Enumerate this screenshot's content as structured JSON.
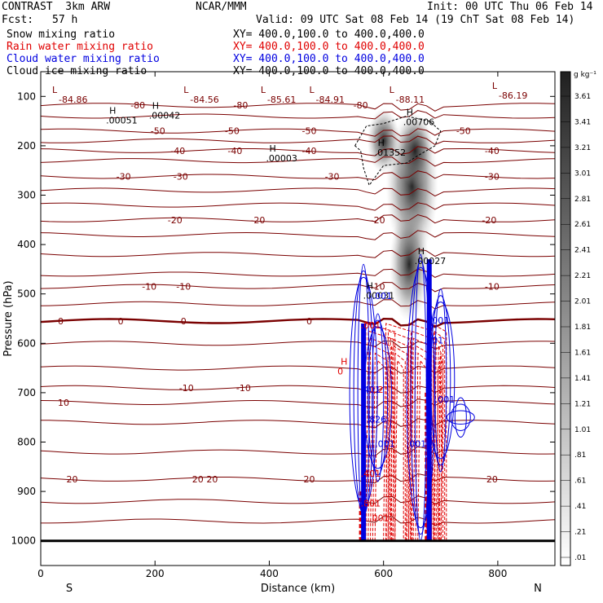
{
  "header": {
    "title_left": "CONTRAST  3km ARW",
    "title_center": "NCAR/MMM",
    "init": "Init: 00 UTC Thu 06 Feb 14",
    "fcst_label": "Fcst:",
    "fcst_value": "57 h",
    "valid": "Valid: 09 UTC Sat 08 Feb 14 (19 ChT Sat 08 Feb 14)"
  },
  "fields": [
    {
      "name": "Snow mixing ratio",
      "xy": "XY= 400.0,100.0 to 400.0,400.0",
      "color": "#000000"
    },
    {
      "name": "Rain water mixing ratio",
      "xy": "XY= 400.0,100.0 to 400.0,400.0",
      "color": "#e00000"
    },
    {
      "name": "Cloud water mixing ratio",
      "xy": "XY= 400.0,100.0 to 400.0,400.0",
      "color": "#0000e0"
    },
    {
      "name": "Cloud ice mixing ratio",
      "xy": "XY= 400.0,100.0 to 400.0,400.0",
      "color": "#000000"
    }
  ],
  "chart_data": {
    "type": "cross-section contour",
    "xlabel": "Distance (km)",
    "ylabel": "Pressure (hPa)",
    "xlim": [
      0,
      900
    ],
    "ylim": [
      1050,
      50
    ],
    "x_ticks": [
      0,
      200,
      400,
      600,
      800
    ],
    "y_ticks": [
      100,
      200,
      300,
      400,
      500,
      600,
      700,
      800,
      900,
      1000
    ],
    "end_labels": {
      "left": "S",
      "right": "N"
    },
    "colorbar": {
      "unit": "g kg⁻¹",
      "levels": [
        "3.61",
        "3.41",
        "3.21",
        "3.01",
        "2.81",
        "2.61",
        "2.41",
        "2.21",
        "2.01",
        "1.81",
        "1.61",
        "1.41",
        "1.21",
        "1.01",
        ".81",
        ".61",
        ".41",
        ".21",
        ".01"
      ]
    },
    "temperature_contours": [
      {
        "label": "-80",
        "p": 118,
        "labels_at": [
          170,
          350,
          560
        ]
      },
      {
        "label": "-50",
        "p": 170,
        "labels_at": [
          205,
          335,
          470,
          740
        ]
      },
      {
        "label": "-40",
        "p": 210,
        "labels_at": [
          240,
          340,
          470,
          790
        ]
      },
      {
        "label": "-30",
        "p": 262,
        "labels_at": [
          145,
          245,
          510,
          790
        ]
      },
      {
        "label": "-20",
        "p": 350,
        "labels_at": [
          235,
          380,
          590,
          785
        ]
      },
      {
        "label": "-10",
        "p": 485,
        "labels_at": [
          190,
          250,
          590,
          790
        ]
      },
      {
        "label": "0",
        "p": 555,
        "labels_at": [
          35,
          140,
          250,
          470
        ]
      },
      {
        "label": "-10",
        "p": 690,
        "labels_at": [
          255,
          355
        ]
      },
      {
        "label": "10",
        "p": 720,
        "labels_at": [
          40
        ]
      },
      {
        "label": "20",
        "p": 875,
        "labels_at": [
          55,
          275,
          300,
          470,
          790
        ]
      }
    ],
    "min_labels": [
      {
        "mark": "L",
        "value": "-84.86",
        "x": 20,
        "p": 93
      },
      {
        "mark": "L",
        "value": "-84.56",
        "x": 250,
        "p": 93
      },
      {
        "mark": "L",
        "value": "-85.61",
        "x": 385,
        "p": 93
      },
      {
        "mark": "L",
        "value": "-84.91",
        "x": 470,
        "p": 93
      },
      {
        "mark": "L",
        "value": "-88.11",
        "x": 610,
        "p": 93
      },
      {
        "mark": "L",
        "value": "-86.19",
        "x": 790,
        "p": 85
      }
    ],
    "max_labels": [
      {
        "mark": "H",
        "value": ".00051",
        "x": 120,
        "p": 135
      },
      {
        "mark": "H",
        "value": ".00042",
        "x": 195,
        "p": 125
      },
      {
        "mark": "H",
        "value": ".00706",
        "x": 640,
        "p": 138
      },
      {
        "mark": "H",
        "value": ".01352",
        "x": 590,
        "p": 200
      },
      {
        "mark": "H",
        "value": ".00003",
        "x": 400,
        "p": 212
      },
      {
        "mark": "H",
        "value": ".00027",
        "x": 660,
        "p": 420
      },
      {
        "mark": "H",
        "value": ".00031",
        "x": 570,
        "p": 490
      },
      {
        "mark": "H",
        "value": "0",
        "x": 525,
        "p": 643
      }
    ],
    "rain_labels": [
      ".001",
      ".401",
      ".801",
      "1.2",
      ".001"
    ],
    "cloud_labels": [
      ".001",
      ".001",
      ".401",
      ".826",
      ".001",
      ".001",
      ".001",
      ".001"
    ],
    "surface_p": 1000,
    "freezing_level_p": 550
  }
}
